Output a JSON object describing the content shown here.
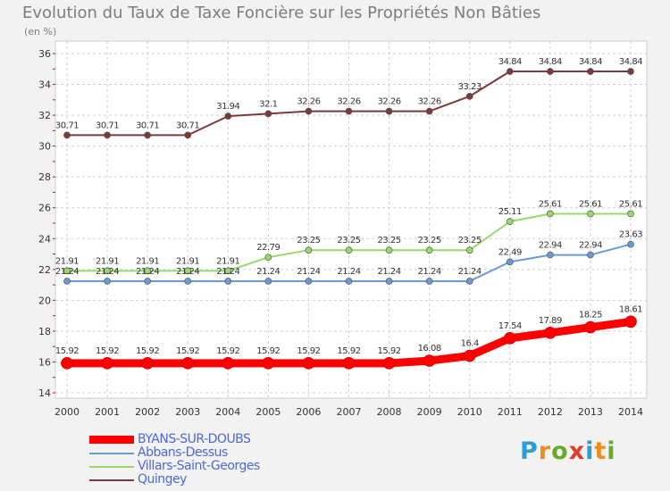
{
  "chart_data": {
    "type": "line",
    "title": "Evolution du Taux de Taxe Foncière sur les Propriétés Non Bâties",
    "unit_label": "(en %)",
    "xlabel": "",
    "ylabel": "(en %)",
    "ylim": [
      14,
      36
    ],
    "yticks": [
      14,
      16,
      18,
      20,
      22,
      24,
      26,
      28,
      30,
      32,
      34,
      36
    ],
    "grid": true,
    "legend_position": "bottom-left",
    "categories": [
      "2000",
      "2001",
      "2002",
      "2003",
      "2004",
      "2005",
      "2006",
      "2007",
      "2008",
      "2009",
      "2010",
      "2011",
      "2012",
      "2013",
      "2014"
    ],
    "series": [
      {
        "name": "BYANS-SUR-DOUBS",
        "color": "#ff0000",
        "emphasis": true,
        "values": [
          15.92,
          15.92,
          15.92,
          15.92,
          15.92,
          15.92,
          15.92,
          15.92,
          15.92,
          16.08,
          16.4,
          17.54,
          17.89,
          18.25,
          18.61
        ],
        "labels": [
          "15.92",
          "15.92",
          "15.92",
          "15.92",
          "15.92",
          "15.92",
          "15.92",
          "15.92",
          "15.92",
          "16.08",
          "16.4",
          "17.54",
          "17.89",
          "18.25",
          "18.61"
        ]
      },
      {
        "name": "Abbans-Dessus",
        "color": "#6b9bd1",
        "emphasis": false,
        "values": [
          21.24,
          21.24,
          21.24,
          21.24,
          21.24,
          21.24,
          21.24,
          21.24,
          21.24,
          21.24,
          21.24,
          22.49,
          22.94,
          22.94,
          23.63
        ],
        "labels": [
          "21.24",
          "21.24",
          "21.24",
          "21.24",
          "21.24",
          "21.24",
          "21.24",
          "21.24",
          "21.24",
          "21.24",
          "21.24",
          "22.49",
          "22.94",
          "22.94",
          "23.63"
        ]
      },
      {
        "name": "Villars-Saint-Georges",
        "color": "#99d96b",
        "emphasis": false,
        "values": [
          21.91,
          21.91,
          21.91,
          21.91,
          21.91,
          22.79,
          23.25,
          23.25,
          23.25,
          23.25,
          23.25,
          25.11,
          25.61,
          25.61,
          25.61
        ],
        "labels": [
          "21.91",
          "21.91",
          "21.91",
          "21.91",
          "21.91",
          "22.79",
          "23.25",
          "23.25",
          "23.25",
          "23.25",
          "23.25",
          "25.11",
          "25.61",
          "25.61",
          "25.61"
        ]
      },
      {
        "name": "Quingey",
        "color": "#7a3a3a",
        "emphasis": false,
        "values": [
          30.71,
          30.71,
          30.71,
          30.71,
          31.94,
          32.1,
          32.26,
          32.26,
          32.26,
          32.26,
          33.23,
          34.84,
          34.84,
          34.84,
          34.84
        ],
        "labels": [
          "30.71",
          "30.71",
          "30.71",
          "30.71",
          "31.94",
          "32.1",
          "32.26",
          "32.26",
          "32.26",
          "32.26",
          "33.23",
          "34.84",
          "34.84",
          "34.84",
          "34.84"
        ]
      }
    ]
  },
  "logo": {
    "letters": [
      "P",
      "r",
      "o",
      "x",
      "i",
      "t",
      "i"
    ],
    "colors": [
      "#2a9fd6",
      "#f08c1e",
      "#6aaa2a",
      "#e03a2a",
      "#2a9fd6",
      "#f08c1e",
      "#6aaa2a"
    ]
  }
}
